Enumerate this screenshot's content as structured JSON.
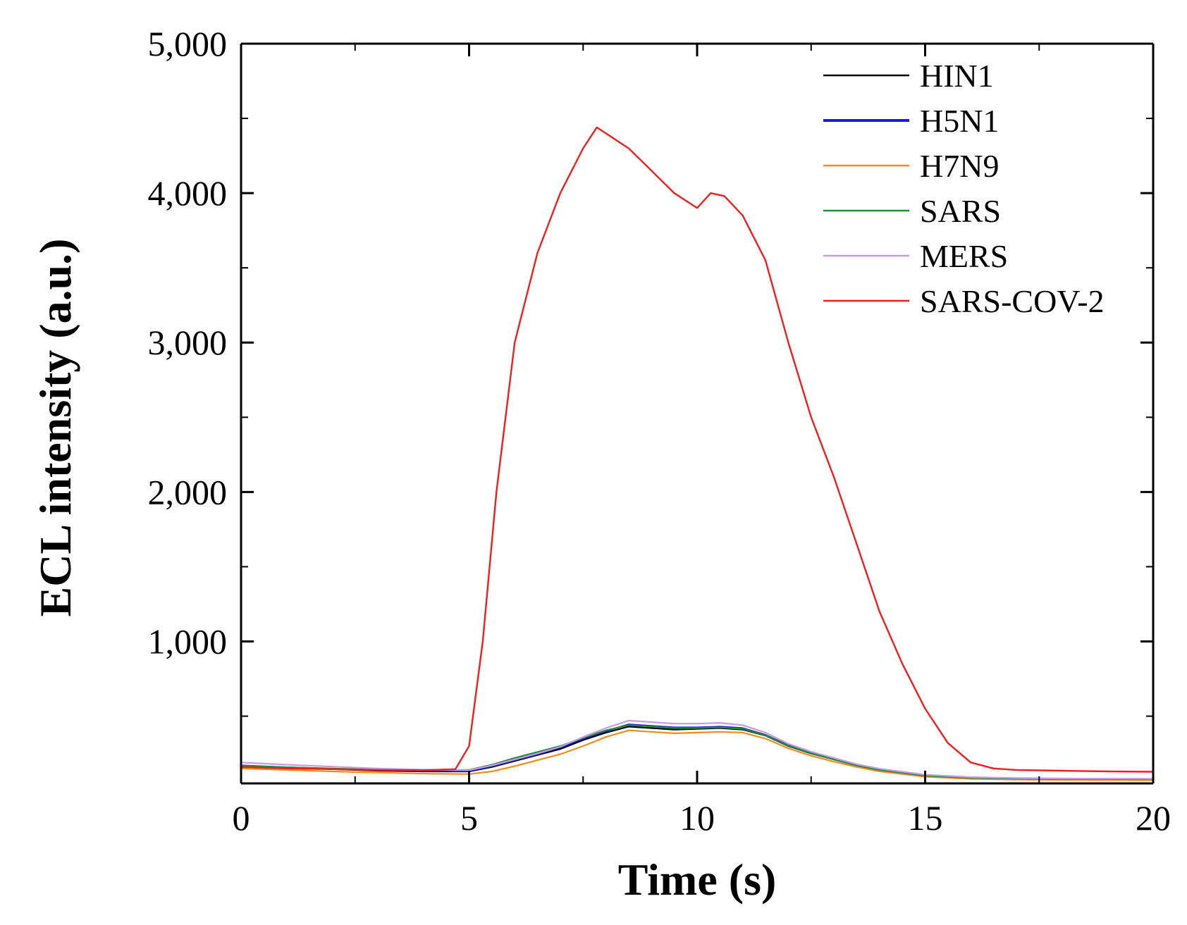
{
  "chart_data": {
    "type": "line",
    "title": "",
    "xlabel": "Time (s)",
    "ylabel": "ECL intensity (a.u.)",
    "xlim": [
      0,
      20
    ],
    "ylim": [
      50,
      5000
    ],
    "xticks": [
      0,
      5,
      10,
      15,
      20
    ],
    "xtick_labels": [
      "0",
      "5",
      "10",
      "15",
      "20"
    ],
    "yticks": [
      1000,
      2000,
      3000,
      4000,
      5000
    ],
    "ytick_labels": [
      "1,000",
      "2,000",
      "3,000",
      "4,000",
      "5,000"
    ],
    "grid": false,
    "legend_position": "top-right",
    "series": [
      {
        "name": "HIN1",
        "color": "#000000",
        "x": [
          0,
          1,
          2,
          3,
          4,
          5,
          5.5,
          6,
          6.5,
          7,
          7.5,
          8,
          8.5,
          9,
          9.5,
          10,
          10.5,
          11,
          11.5,
          12,
          12.5,
          13,
          13.5,
          14,
          15,
          16,
          17,
          18,
          19,
          20
        ],
        "y": [
          165,
          155,
          145,
          135,
          130,
          130,
          160,
          200,
          240,
          280,
          340,
          390,
          430,
          420,
          410,
          415,
          420,
          410,
          370,
          300,
          250,
          210,
          170,
          140,
          100,
          85,
          80,
          78,
          77,
          76
        ]
      },
      {
        "name": "H5N1",
        "color": "#1a1adb",
        "x": [
          0,
          1,
          2,
          3,
          4,
          5,
          5.5,
          6,
          6.5,
          7,
          7.5,
          8,
          8.5,
          9,
          9.5,
          10,
          10.5,
          11,
          11.5,
          12,
          12.5,
          13,
          13.5,
          14,
          15,
          16,
          17,
          18,
          19,
          20
        ],
        "y": [
          170,
          158,
          148,
          138,
          133,
          133,
          165,
          205,
          245,
          290,
          350,
          400,
          445,
          435,
          425,
          425,
          430,
          420,
          375,
          305,
          255,
          212,
          172,
          142,
          102,
          86,
          81,
          79,
          78,
          77
        ]
      },
      {
        "name": "H7N9",
        "color": "#f08c1a",
        "x": [
          0,
          1,
          2,
          3,
          4,
          5,
          5.5,
          6,
          6.5,
          7,
          7.5,
          8,
          8.5,
          9,
          9.5,
          10,
          10.5,
          11,
          11.5,
          12,
          12.5,
          13,
          13.5,
          14,
          15,
          16,
          17,
          18,
          19,
          20
        ],
        "y": [
          150,
          140,
          130,
          122,
          115,
          112,
          130,
          165,
          205,
          245,
          300,
          360,
          405,
          395,
          385,
          390,
          395,
          390,
          350,
          285,
          235,
          195,
          160,
          130,
          95,
          80,
          75,
          73,
          72,
          71
        ]
      },
      {
        "name": "SARS",
        "color": "#1e8c3c",
        "x": [
          0,
          1,
          2,
          3,
          4,
          5,
          5.5,
          6,
          6.5,
          7,
          7.5,
          8,
          8.5,
          9,
          9.5,
          10,
          10.5,
          11,
          11.5,
          12,
          12.5,
          13,
          13.5,
          14,
          15,
          16,
          17,
          18,
          19,
          20
        ],
        "y": [
          168,
          158,
          150,
          142,
          138,
          140,
          175,
          220,
          260,
          300,
          355,
          405,
          440,
          430,
          420,
          420,
          425,
          415,
          372,
          302,
          252,
          210,
          170,
          140,
          102,
          87,
          82,
          80,
          79,
          78
        ]
      },
      {
        "name": "MERS",
        "color": "#c79ae6",
        "x": [
          0,
          1,
          2,
          3,
          4,
          5,
          5.5,
          6,
          6.5,
          7,
          7.5,
          8,
          8.5,
          9,
          9.5,
          10,
          10.5,
          11,
          11.5,
          12,
          12.5,
          13,
          13.5,
          14,
          15,
          16,
          17,
          18,
          19,
          20
        ],
        "y": [
          190,
          175,
          162,
          150,
          142,
          138,
          170,
          210,
          250,
          295,
          360,
          420,
          470,
          460,
          450,
          450,
          455,
          440,
          390,
          315,
          262,
          220,
          178,
          148,
          108,
          92,
          86,
          83,
          82,
          81
        ]
      },
      {
        "name": "SARS-COV-2",
        "color": "#f01e1e",
        "x": [
          0,
          1,
          2,
          3,
          4,
          4.7,
          5,
          5.3,
          5.6,
          6,
          6.5,
          7,
          7.5,
          7.8,
          8,
          8.5,
          9,
          9.5,
          10,
          10.3,
          10.6,
          11,
          11.5,
          12,
          12.5,
          13,
          13.5,
          14,
          14.5,
          15,
          15.5,
          16,
          16.5,
          17,
          18,
          19,
          20
        ],
        "y": [
          160,
          150,
          145,
          140,
          138,
          145,
          300,
          1000,
          2000,
          3000,
          3600,
          4000,
          4300,
          4440,
          4400,
          4300,
          4150,
          4000,
          3900,
          4000,
          3980,
          3850,
          3550,
          3000,
          2500,
          2100,
          1650,
          1200,
          850,
          550,
          320,
          190,
          150,
          140,
          135,
          130,
          128
        ]
      }
    ]
  }
}
